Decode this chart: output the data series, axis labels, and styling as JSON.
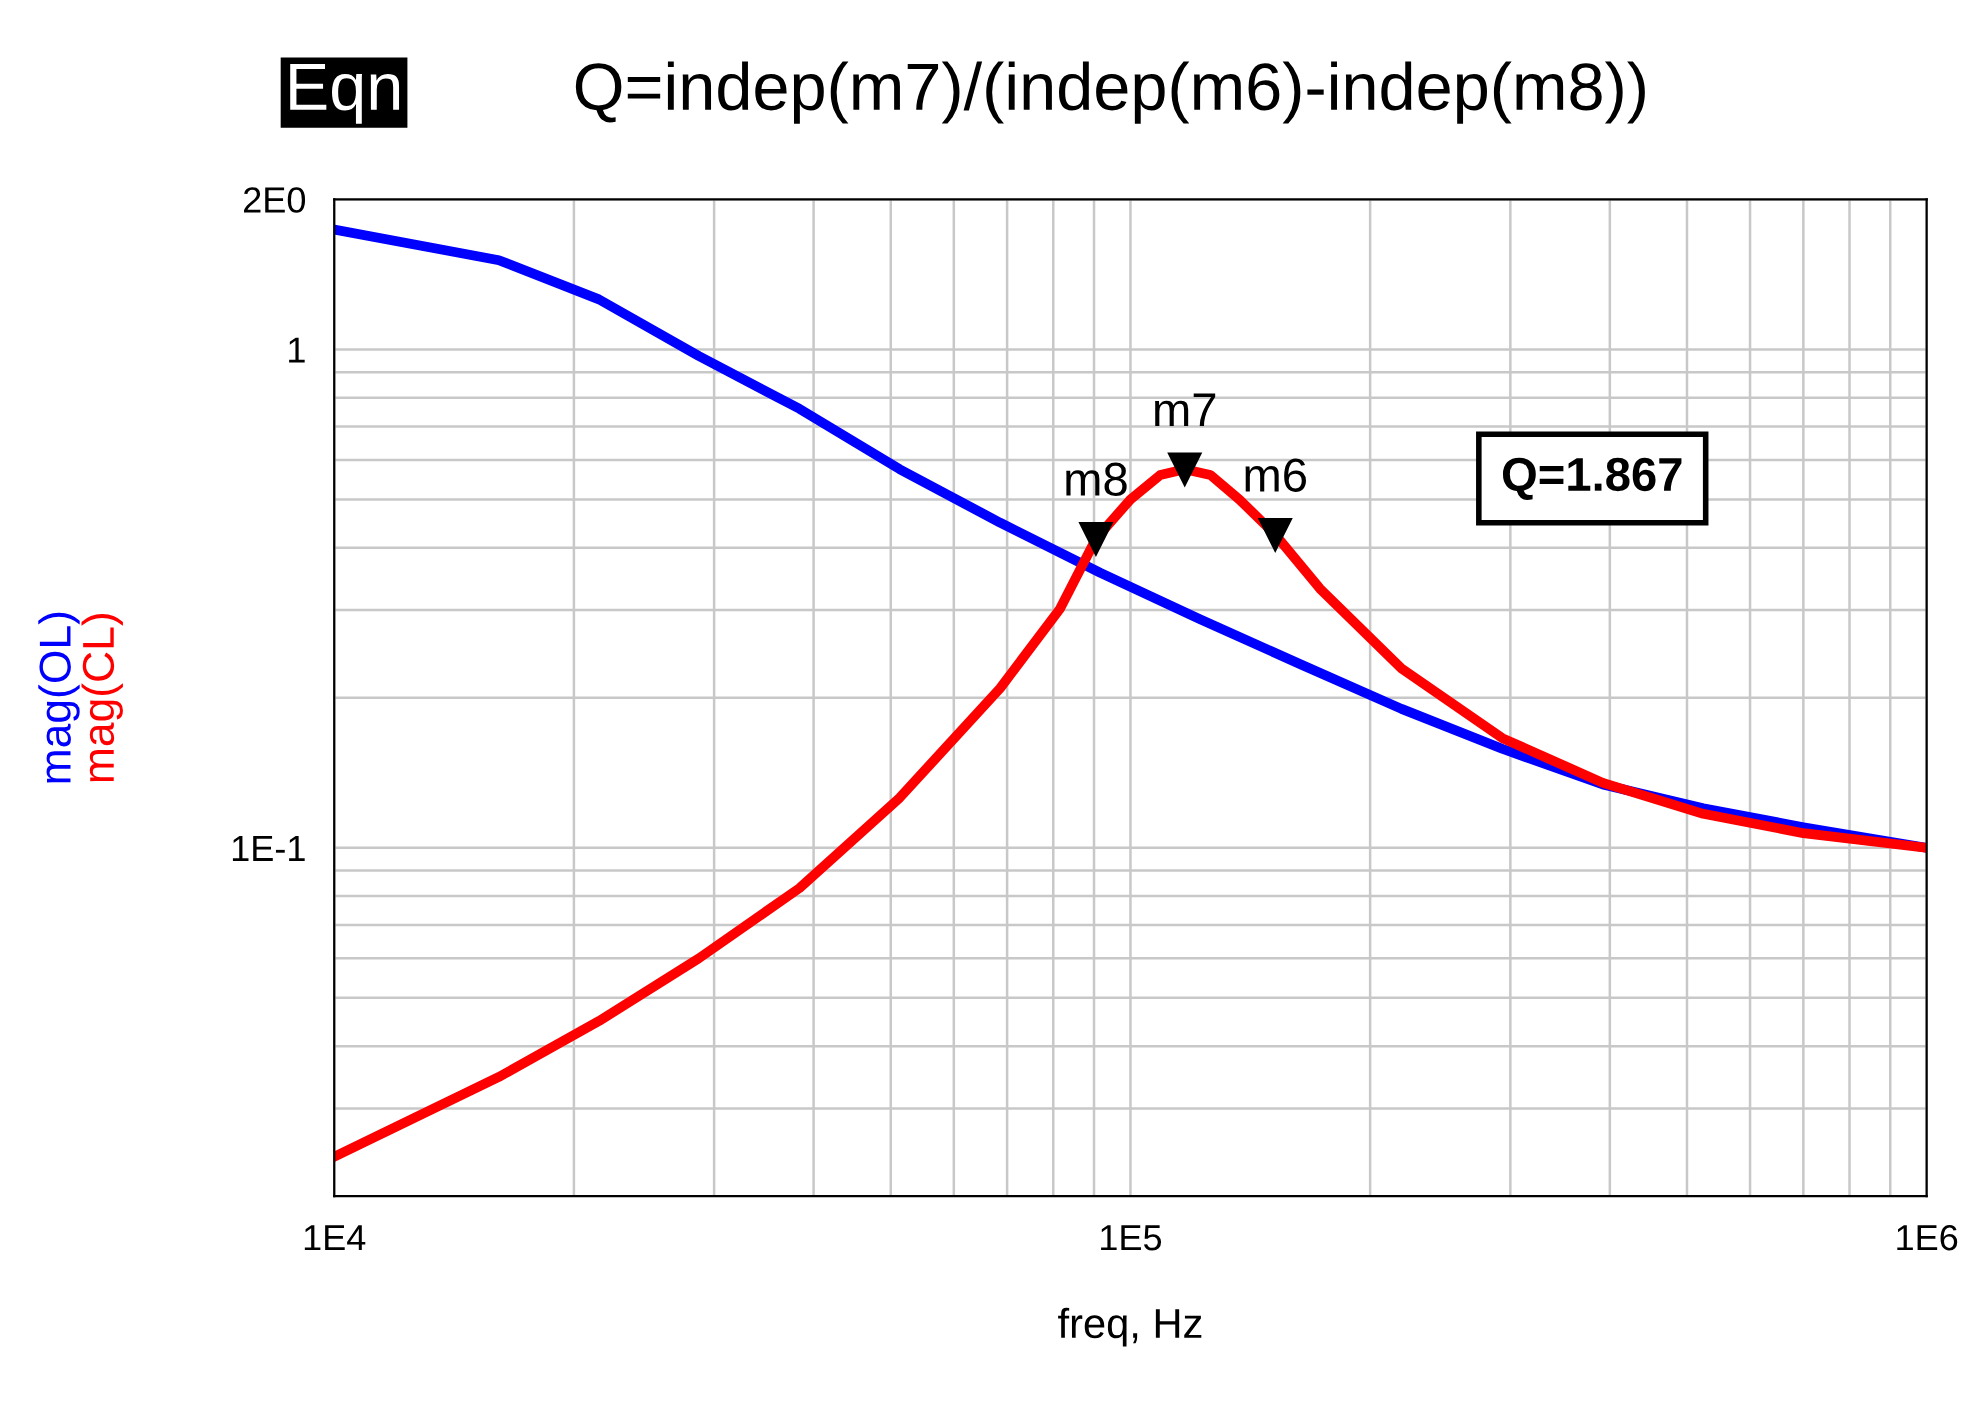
{
  "chart_data": {
    "type": "line",
    "title": "Q=indep(m7)/(indep(m6)-indep(m8))",
    "xlabel": "freq, Hz",
    "log": "xy",
    "grid": true,
    "legend": false,
    "line_style": "solid",
    "marker": "none",
    "xlim": [
      10000,
      1000000
    ],
    "ylim": [
      0.02,
      2
    ],
    "xticks": [
      {
        "value": 10000,
        "label": "1E4"
      },
      {
        "value": 20000,
        "label": null
      },
      {
        "value": 30000,
        "label": null
      },
      {
        "value": 40000,
        "label": null
      },
      {
        "value": 50000,
        "label": null
      },
      {
        "value": 60000,
        "label": null
      },
      {
        "value": 70000,
        "label": null
      },
      {
        "value": 80000,
        "label": null
      },
      {
        "value": 90000,
        "label": null
      },
      {
        "value": 100000,
        "label": "1E5"
      },
      {
        "value": 200000,
        "label": null
      },
      {
        "value": 300000,
        "label": null
      },
      {
        "value": 400000,
        "label": null
      },
      {
        "value": 500000,
        "label": null
      },
      {
        "value": 600000,
        "label": null
      },
      {
        "value": 700000,
        "label": null
      },
      {
        "value": 800000,
        "label": null
      },
      {
        "value": 900000,
        "label": null
      },
      {
        "value": 1000000,
        "label": "1E6"
      }
    ],
    "yticks": [
      {
        "value": 0.02,
        "label": null
      },
      {
        "value": 0.03,
        "label": null
      },
      {
        "value": 0.04,
        "label": null
      },
      {
        "value": 0.05,
        "label": null
      },
      {
        "value": 0.06,
        "label": null
      },
      {
        "value": 0.07,
        "label": null
      },
      {
        "value": 0.08,
        "label": null
      },
      {
        "value": 0.09,
        "label": null
      },
      {
        "value": 0.1,
        "label": "1E-1"
      },
      {
        "value": 0.2,
        "label": null
      },
      {
        "value": 0.3,
        "label": null
      },
      {
        "value": 0.4,
        "label": null
      },
      {
        "value": 0.5,
        "label": null
      },
      {
        "value": 0.6,
        "label": null
      },
      {
        "value": 0.7,
        "label": null
      },
      {
        "value": 0.8,
        "label": null
      },
      {
        "value": 0.9,
        "label": null
      },
      {
        "value": 1,
        "label": "1"
      },
      {
        "value": 2,
        "label": "2E0"
      }
    ],
    "series": [
      {
        "name": "mag(OL)",
        "color": "#0000ff",
        "x": [
          10000,
          16100,
          21500,
          28700,
          38400,
          51300,
          68600,
          91700,
          122000,
          164000,
          219000,
          293000,
          392000,
          524000,
          700000,
          1000000
        ],
        "values": [
          1.74,
          1.51,
          1.26,
          0.97,
          0.76,
          0.575,
          0.449,
          0.356,
          0.288,
          0.233,
          0.19,
          0.158,
          0.134,
          0.12,
          0.11,
          0.1
        ]
      },
      {
        "name": "mag(CL)",
        "color": "#ff0000",
        "x": [
          10000,
          16100,
          21500,
          28700,
          38400,
          51300,
          68600,
          81600,
          90500,
          100000,
          109000,
          117000,
          126000,
          137000,
          152000,
          173000,
          219000,
          293000,
          392000,
          524000,
          700000,
          1000000
        ],
        "values": [
          0.024,
          0.0347,
          0.0449,
          0.06,
          0.083,
          0.126,
          0.209,
          0.302,
          0.417,
          0.5,
          0.56,
          0.575,
          0.56,
          0.5,
          0.425,
          0.331,
          0.229,
          0.166,
          0.135,
          0.117,
          0.107,
          0.1
        ]
      }
    ],
    "annotations": [
      "Eqn",
      "Q=1.867",
      {
        "text": "m8",
        "x": 90500,
        "y": 0.417
      },
      {
        "text": "m7",
        "x": 117000,
        "y": 0.575
      },
      {
        "text": "m6",
        "x": 152000,
        "y": 0.425
      }
    ]
  }
}
